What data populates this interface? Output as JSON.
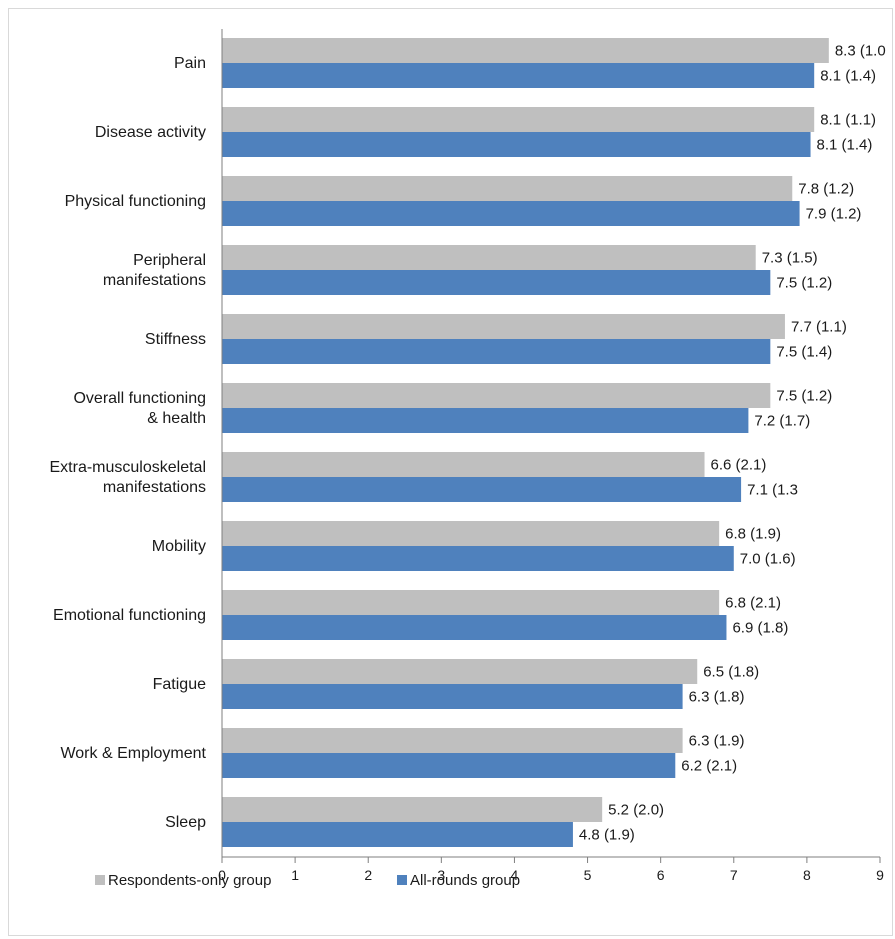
{
  "chart_data": {
    "type": "bar",
    "orientation": "horizontal",
    "categories": [
      "Pain",
      "Disease activity",
      "Physical functioning",
      "Peripheral manifestations",
      "Stiffness",
      "Overall functioning & health",
      "Extra-musculoskeletal manifestations",
      "Mobility",
      "Emotional functioning",
      "Fatigue",
      "Work & Employment",
      "Sleep"
    ],
    "category_lines": [
      [
        "Pain"
      ],
      [
        "Disease activity"
      ],
      [
        "Physical functioning"
      ],
      [
        "Peripheral",
        "manifestations"
      ],
      [
        "Stiffness"
      ],
      [
        "Overall functioning",
        "& health"
      ],
      [
        "Extra-musculoskeletal",
        "manifestations"
      ],
      [
        "Mobility"
      ],
      [
        "Emotional functioning"
      ],
      [
        "Fatigue"
      ],
      [
        "Work & Employment"
      ],
      [
        "Sleep"
      ]
    ],
    "series": [
      {
        "name": "Respondents-only group",
        "color": "#bfbfbf",
        "values": [
          8.3,
          8.1,
          7.8,
          7.3,
          7.7,
          7.5,
          6.6,
          6.8,
          6.8,
          6.5,
          6.3,
          5.2
        ],
        "labels": [
          "8.3 (1.0",
          "8.1 (1.1)",
          "7.8 (1.2)",
          "7.3 (1.5)",
          "7.7 (1.1)",
          "7.5 (1.2)",
          "6.6 (2.1)",
          "6.8 (1.9)",
          "6.8 (2.1)",
          "6.5 (1.8)",
          "6.3 (1.9)",
          "5.2 (2.0)"
        ]
      },
      {
        "name": "All-rounds group",
        "color": "#4f81bd",
        "values": [
          8.1,
          8.05,
          7.9,
          7.5,
          7.5,
          7.2,
          7.1,
          7.0,
          6.9,
          6.3,
          6.2,
          4.8
        ],
        "labels": [
          "8.1 (1.4)",
          "8.1 (1.4)",
          "7.9 (1.2)",
          "7.5 (1.2)",
          "7.5 (1.4)",
          "7.2 (1.7)",
          "7.1 (1.3",
          "7.0 (1.6)",
          "6.9 (1.8)",
          "6.3 (1.8)",
          "6.2 (2.1)",
          "4.8 (1.9)"
        ]
      }
    ],
    "xlim": [
      0,
      9
    ],
    "xticks": [
      0,
      1,
      2,
      3,
      4,
      5,
      6,
      7,
      8,
      9
    ],
    "grid": false,
    "legend_position": "bottom-left",
    "title": "",
    "xlabel": "",
    "ylabel": ""
  }
}
